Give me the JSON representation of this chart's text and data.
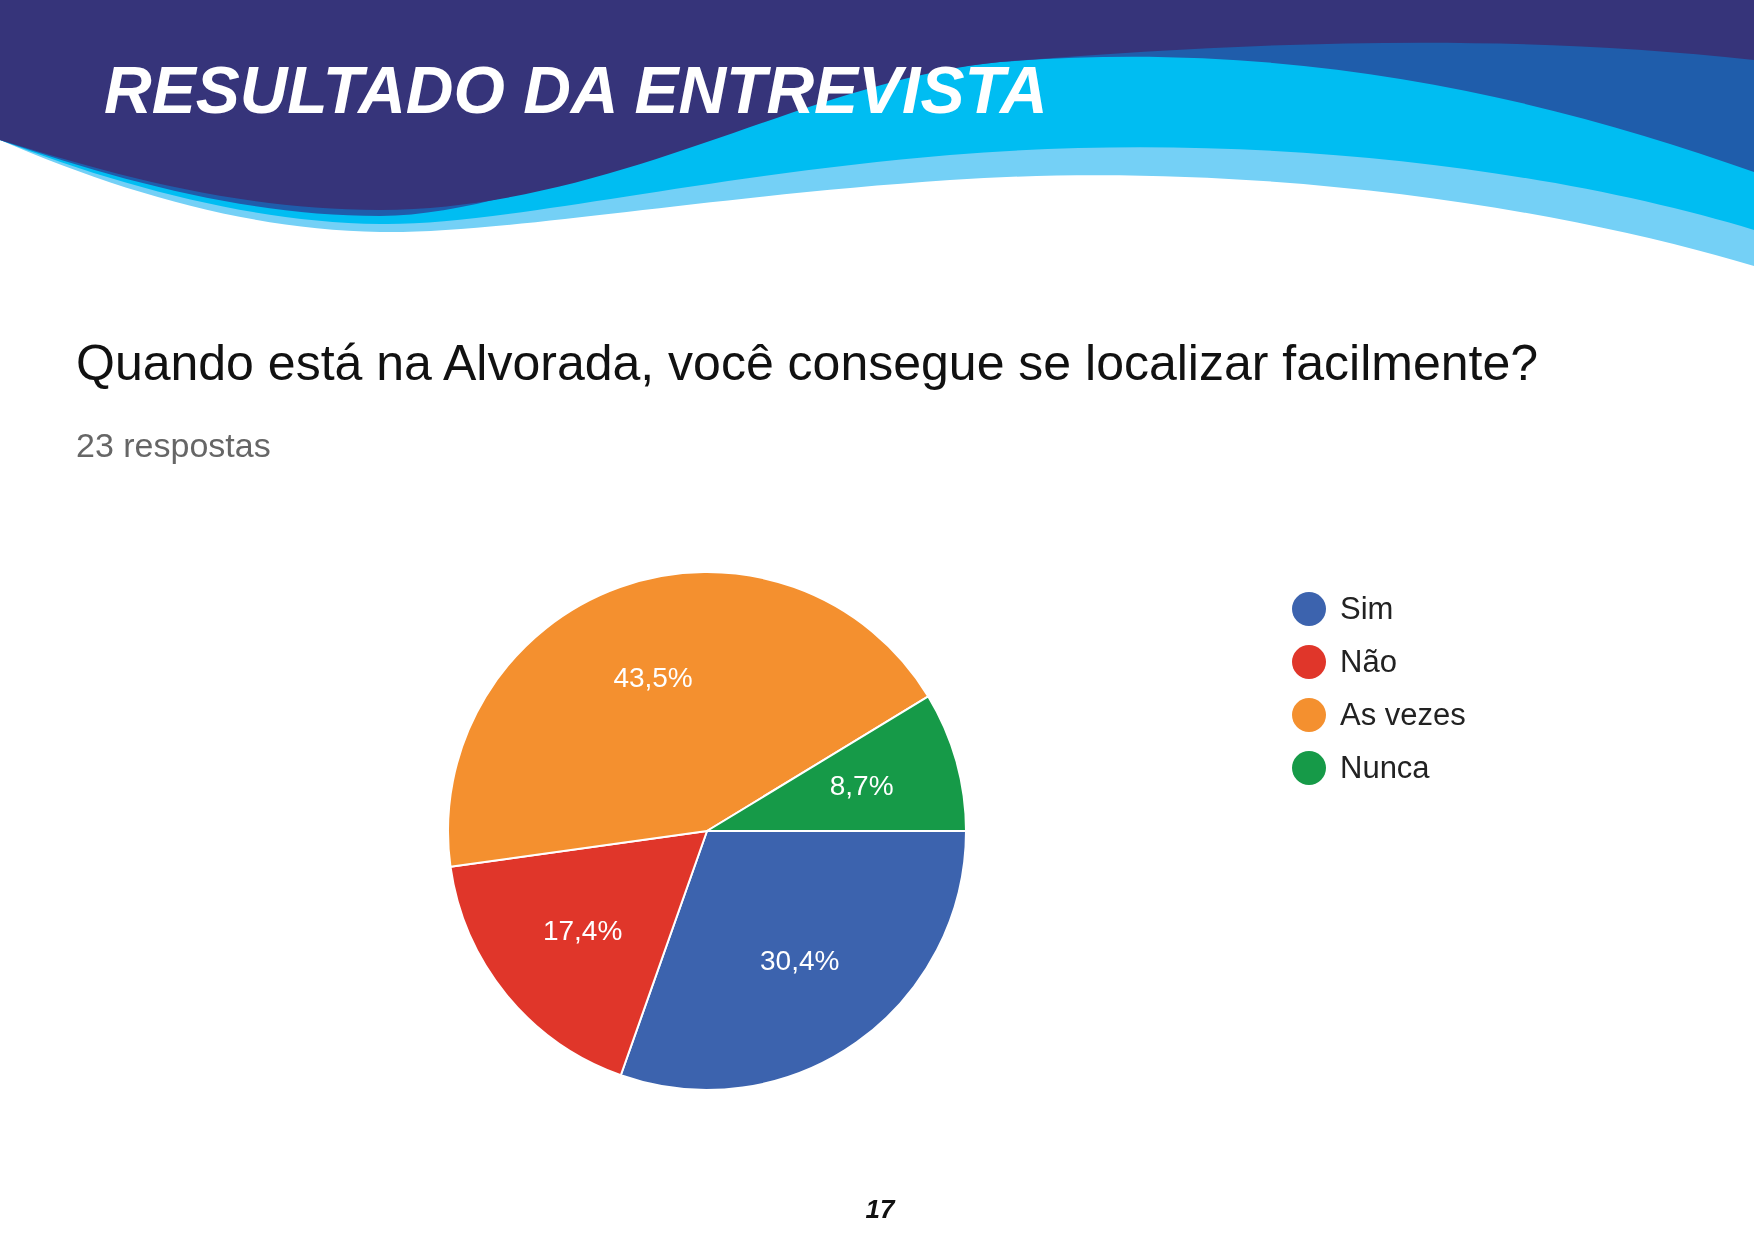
{
  "chart_data": {
    "type": "pie",
    "title": "Quando está na Alvorada, você consegue se localizar facilmente?",
    "subtitle": "23 respostas",
    "categories": [
      "Sim",
      "Não",
      "As vezes",
      "Nunca"
    ],
    "values": [
      30.4,
      17.4,
      43.5,
      8.7
    ],
    "colors": [
      "#3c63ae",
      "#e0362a",
      "#f4902f",
      "#169a48"
    ],
    "value_labels": [
      "30,4%",
      "17,4%",
      "43,5%",
      "8,7%"
    ],
    "legend": "top right",
    "annotations": [
      "RESULTADO DA ENTREVISTA",
      "17"
    ]
  }
}
